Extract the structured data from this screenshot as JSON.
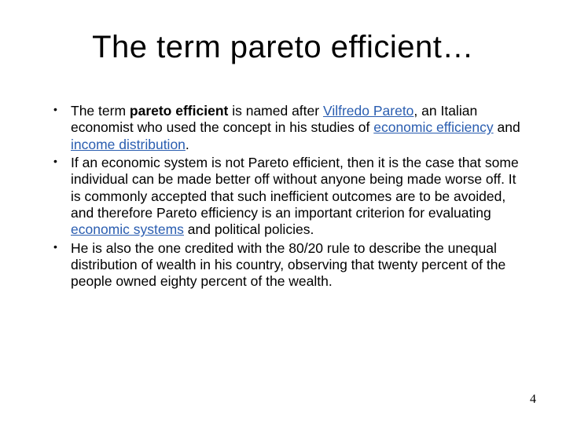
{
  "title": "The term pareto efficient…",
  "bullets": [
    {
      "prefix": "The term ",
      "bold": "pareto efficient",
      "mid1": " is named after ",
      "link1": "Vilfredo Pareto",
      "mid2": ", an Italian economist who used the concept in his studies of ",
      "link2": "economic efficiency",
      "mid3": " and ",
      "link3": "income distribution",
      "suffix": "."
    },
    {
      "prefix": "If an economic system is not Pareto efficient, then it is the case that some individual can be made better off without anyone being made worse off. It is commonly accepted that such inefficient outcomes are to be avoided, and therefore Pareto efficiency is an important criterion for evaluating ",
      "link1": "economic systems",
      "suffix": " and political policies."
    },
    {
      "text": "He is also the one credited with the 80/20 rule to describe the unequal distribution of wealth in his country, observing that twenty percent of the people owned eighty percent of the wealth."
    }
  ],
  "page_number": "4",
  "colors": {
    "link": "#2a5db0",
    "text": "#000000",
    "background": "#ffffff"
  },
  "typography": {
    "title_fontsize": 40,
    "body_fontsize": 17.5,
    "font_family": "Comic Sans MS"
  }
}
